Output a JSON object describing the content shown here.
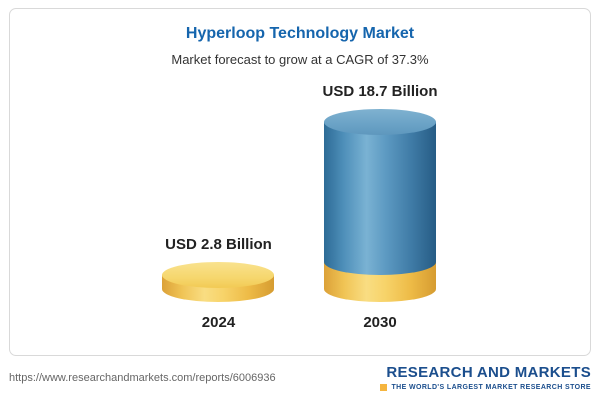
{
  "card": {
    "title": "Hyperloop Technology Market",
    "subtitle": "Market forecast to grow at a CAGR of 37.3%"
  },
  "chart_data": {
    "type": "bar",
    "categories": [
      "2024",
      "2030"
    ],
    "values": [
      2.8,
      18.7
    ],
    "value_labels": [
      "USD 2.8 Billion",
      "USD 18.7 Billion"
    ],
    "unit": "USD Billion",
    "title": "Hyperloop Technology Market",
    "subtitle": "Market forecast to grow at a CAGR of 37.3%",
    "cagr": "37.3%",
    "legend": "none",
    "grid": false,
    "colors": {
      "bar_2024": "#f3cb5c",
      "bar_2030": "#4d8cb7",
      "bar_2030_base": "#f3cb5c",
      "title_text": "#1565ad",
      "label_text": "#222222"
    }
  },
  "footer": {
    "url": "https://www.researchandmarkets.com/reports/6006936",
    "logo_name": "RESEARCH AND MARKETS",
    "logo_tagline": "THE WORLD'S LARGEST MARKET RESEARCH STORE"
  }
}
